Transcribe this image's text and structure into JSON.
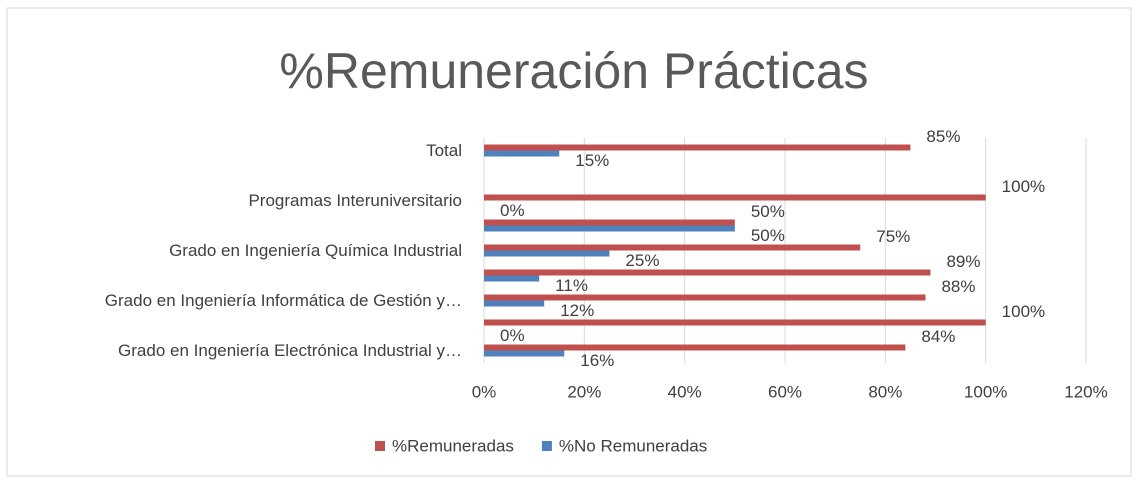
{
  "chart_data": {
    "type": "hbar",
    "title": "%Remuneración Prácticas",
    "categories": [
      "Total",
      null,
      "Programas Interuniversitario",
      null,
      "Grado en Ingeniería Química Industrial",
      null,
      "Grado en Ingeniería Informática de Gestión y…",
      null,
      "Grado en Ingeniería Electrónica Industrial y…"
    ],
    "series": [
      {
        "name": "%Remuneradas",
        "color": "#c0504d",
        "values": [
          85,
          null,
          100,
          50,
          75,
          89,
          88,
          100,
          84
        ],
        "value_labels": [
          "85%",
          null,
          "100%",
          "50%",
          "75%",
          "89%",
          "88%",
          "100%",
          "84%"
        ]
      },
      {
        "name": "%No Remuneradas",
        "color": "#4f81bd",
        "values": [
          15,
          null,
          0,
          50,
          25,
          11,
          12,
          0,
          16
        ],
        "value_labels": [
          "15%",
          null,
          "0%",
          "50%",
          "25%",
          "11%",
          "12%",
          "0%",
          "16%"
        ]
      }
    ],
    "xlim": [
      0,
      120
    ],
    "xticks": [
      {
        "value": 0,
        "label": "0%"
      },
      {
        "value": 20,
        "label": "20%"
      },
      {
        "value": 40,
        "label": "40%"
      },
      {
        "value": 60,
        "label": "60%"
      },
      {
        "value": 80,
        "label": "80%"
      },
      {
        "value": 100,
        "label": "100%"
      },
      {
        "value": 120,
        "label": "120%"
      }
    ],
    "grid": true,
    "legend": "bottom"
  }
}
